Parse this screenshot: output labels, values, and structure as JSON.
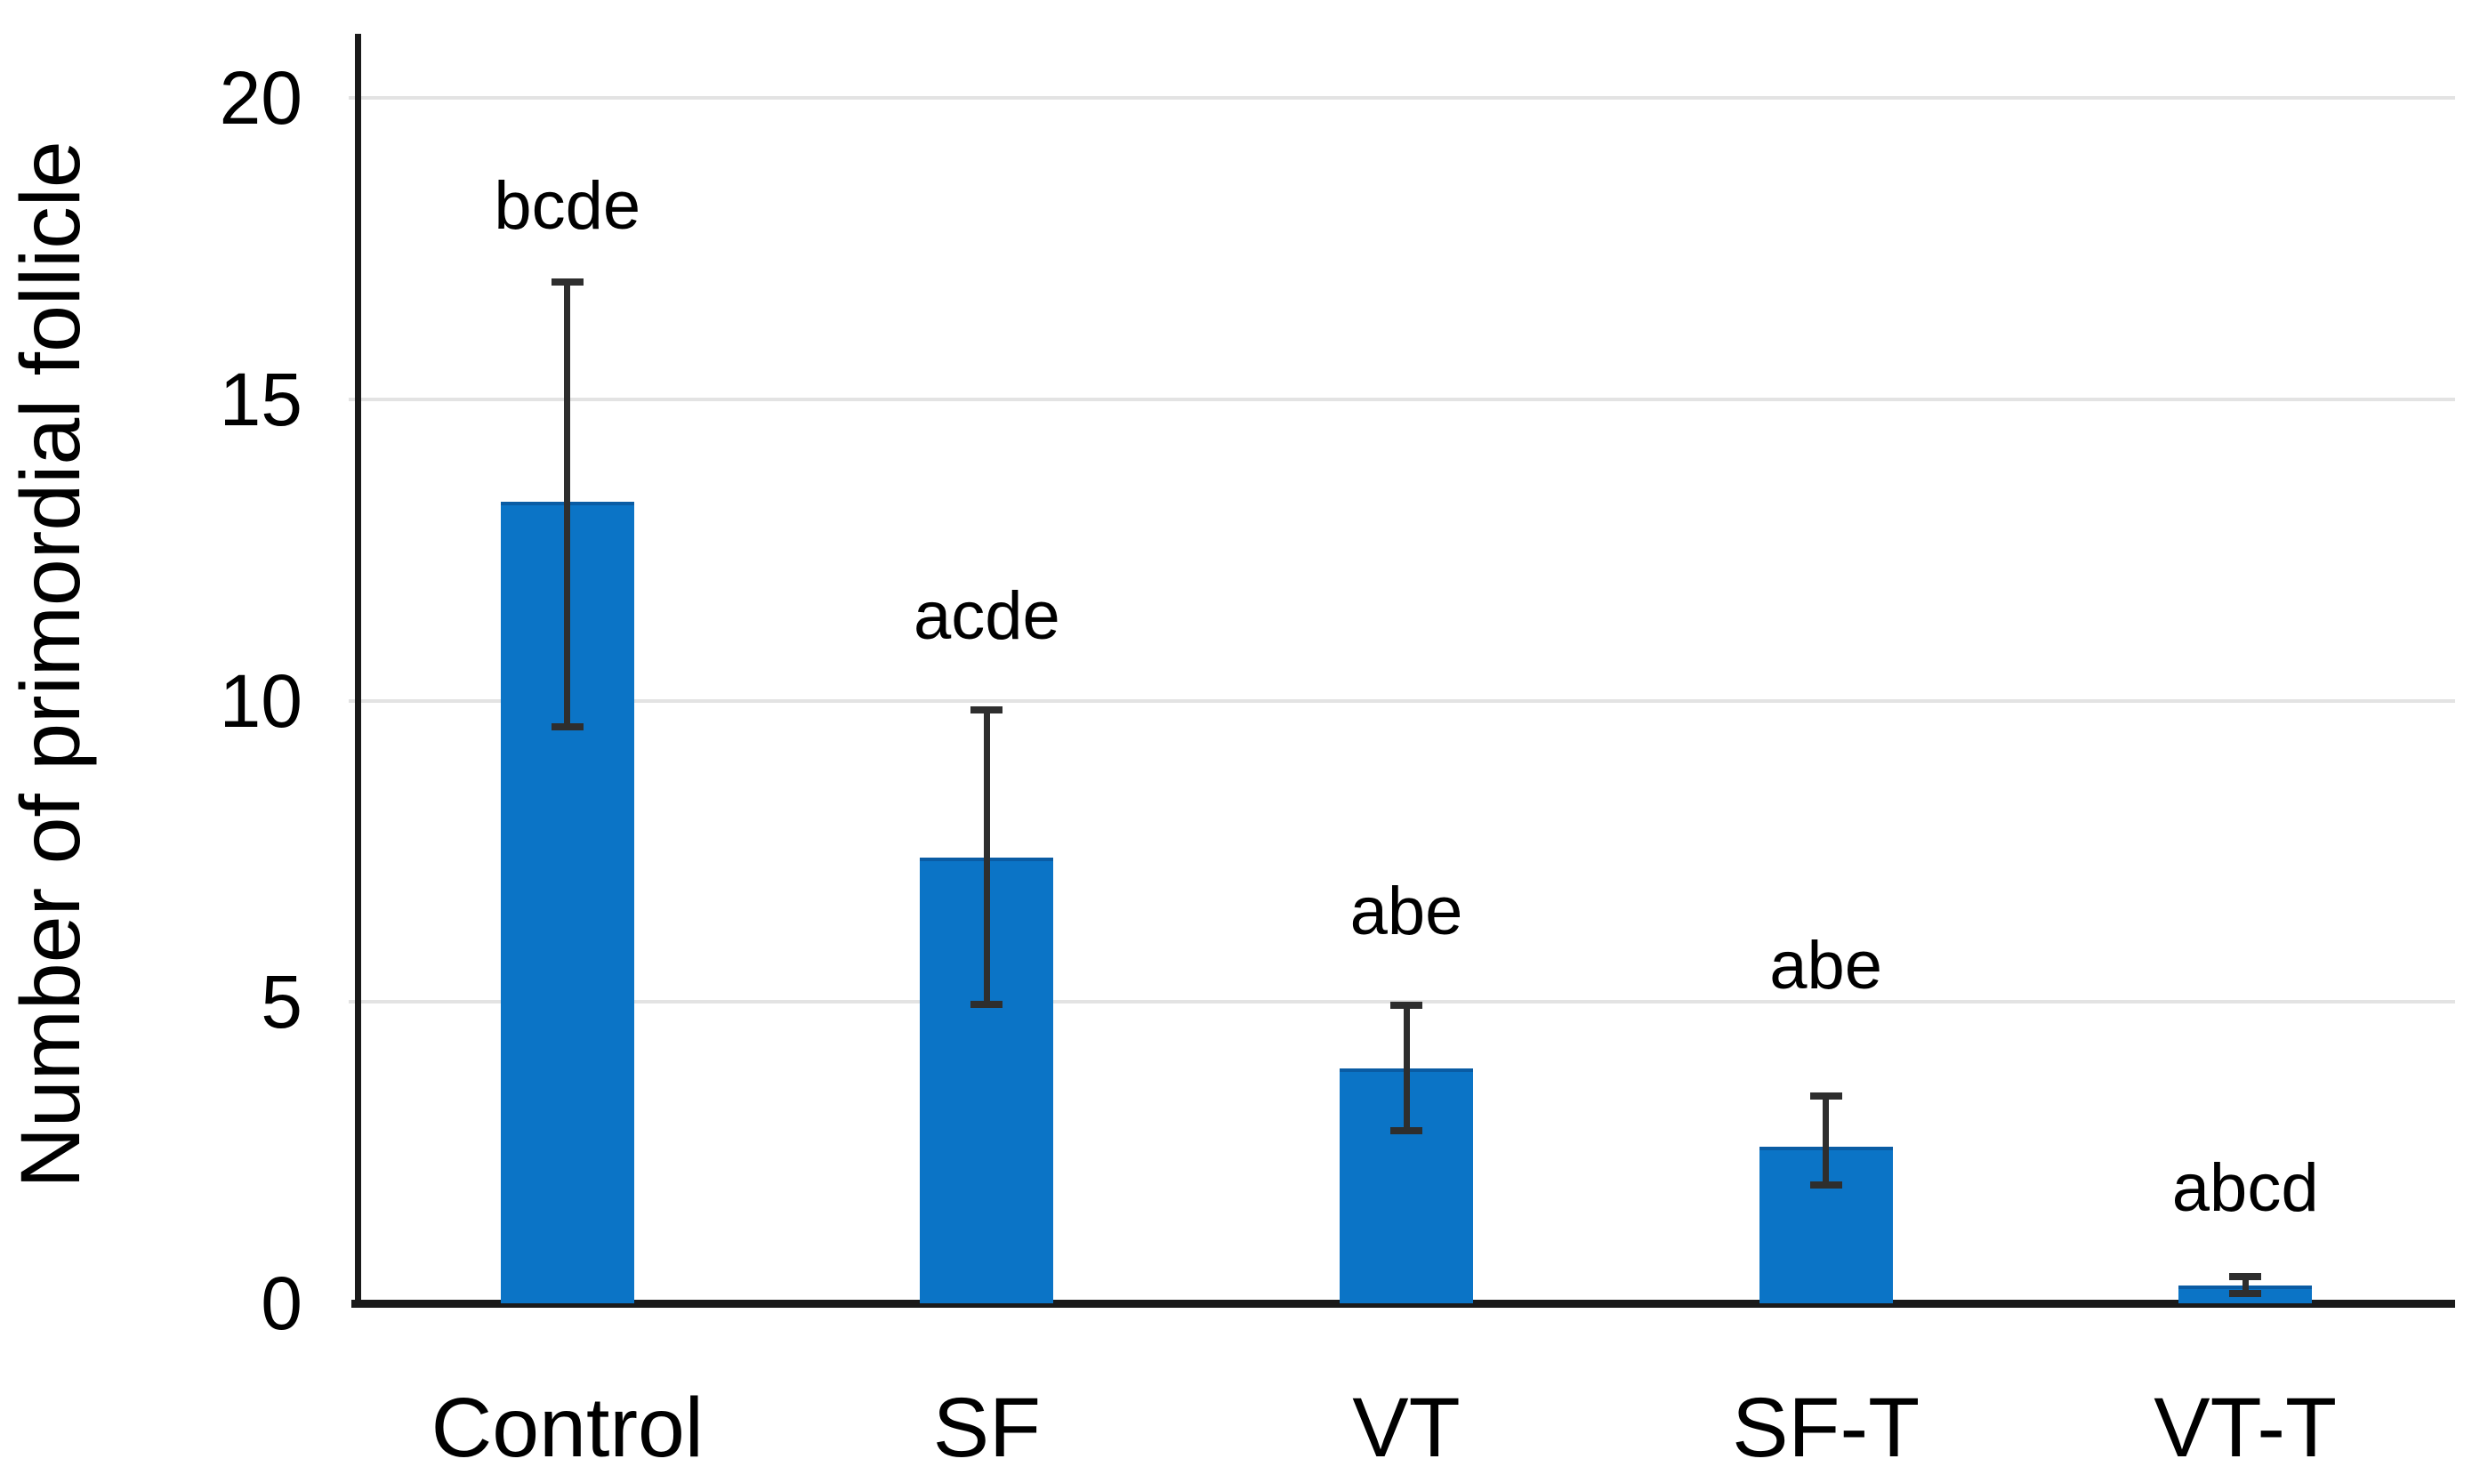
{
  "chart_data": {
    "type": "bar",
    "title": "",
    "xlabel": "",
    "ylabel": "Number of primordial follicle",
    "ylim": [
      0,
      21
    ],
    "yticks": [
      0,
      5,
      10,
      15,
      20
    ],
    "gridline_values": [
      5,
      10,
      15,
      20
    ],
    "grid": "horizontal",
    "legend": "none",
    "categories": [
      "Control",
      "SF",
      "VT",
      "SF-T",
      "VT-T"
    ],
    "series": [
      {
        "name": "Number of primordial follicle",
        "values": [
          13.3,
          7.4,
          3.9,
          2.6,
          0.3
        ],
        "error_low": [
          9.5,
          4.9,
          2.8,
          1.9,
          0.1
        ],
        "error_high": [
          17.0,
          9.9,
          5.0,
          3.5,
          0.5
        ]
      }
    ],
    "significance_labels": [
      {
        "text": "bcde",
        "y": 18.2
      },
      {
        "text": "acde",
        "y": 11.4
      },
      {
        "text": "abe",
        "y": 6.5
      },
      {
        "text": "abe",
        "y": 5.6
      },
      {
        "text": "abcd",
        "y": 1.9
      }
    ],
    "colors": {
      "bar": "#0b74c6",
      "bar_top_edge": "#0a5ca4",
      "error_bar": "#2e2e2e",
      "gridline": "#e3e3e3",
      "axis": "#1a1a1a",
      "text": "#000000",
      "background": "#ffffff"
    }
  }
}
